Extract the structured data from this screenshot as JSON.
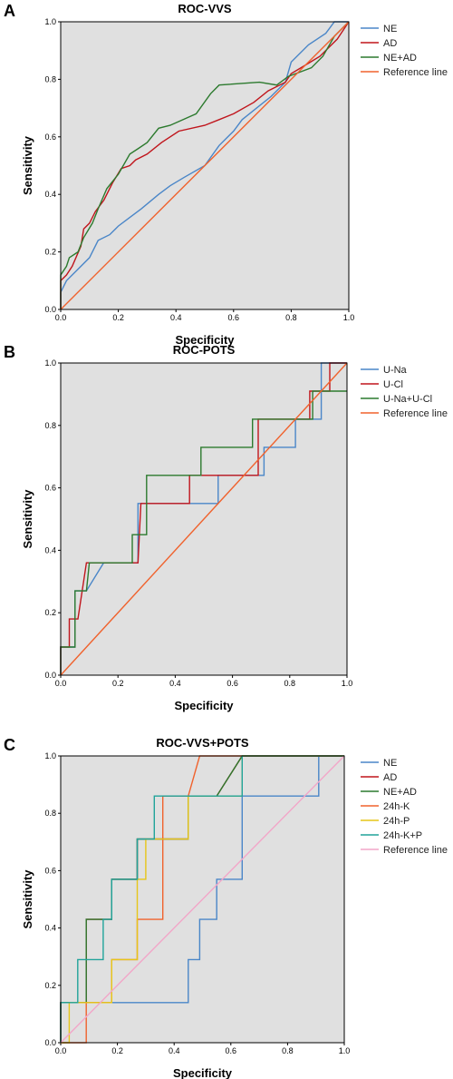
{
  "chart_data": [
    {
      "type": "line",
      "panel": "A",
      "title": "ROC-VVS",
      "xlabel": "Specificity",
      "ylabel": "Sensitivity",
      "xlim": [
        0,
        1
      ],
      "ylim": [
        0,
        1
      ],
      "ticks": [
        "0.0",
        "0.2",
        "0.4",
        "0.6",
        "0.8",
        "1.0"
      ],
      "legend_position": "right",
      "series": [
        {
          "name": "NE",
          "color": "#4a86c8",
          "points": [
            [
              0,
              0
            ],
            [
              0,
              0.06
            ],
            [
              0.02,
              0.1
            ],
            [
              0.06,
              0.14
            ],
            [
              0.1,
              0.18
            ],
            [
              0.13,
              0.24
            ],
            [
              0.17,
              0.26
            ],
            [
              0.2,
              0.29
            ],
            [
              0.24,
              0.32
            ],
            [
              0.28,
              0.35
            ],
            [
              0.34,
              0.4
            ],
            [
              0.38,
              0.43
            ],
            [
              0.43,
              0.46
            ],
            [
              0.5,
              0.5
            ],
            [
              0.55,
              0.57
            ],
            [
              0.6,
              0.62
            ],
            [
              0.63,
              0.66
            ],
            [
              0.68,
              0.7
            ],
            [
              0.73,
              0.74
            ],
            [
              0.78,
              0.79
            ],
            [
              0.8,
              0.86
            ],
            [
              0.86,
              0.92
            ],
            [
              0.92,
              0.96
            ],
            [
              0.95,
              1
            ],
            [
              1,
              1
            ]
          ]
        },
        {
          "name": "AD",
          "color": "#c0151c",
          "points": [
            [
              0,
              0
            ],
            [
              0,
              0.1
            ],
            [
              0.02,
              0.12
            ],
            [
              0.04,
              0.15
            ],
            [
              0.07,
              0.22
            ],
            [
              0.08,
              0.28
            ],
            [
              0.1,
              0.3
            ],
            [
              0.12,
              0.34
            ],
            [
              0.15,
              0.38
            ],
            [
              0.18,
              0.44
            ],
            [
              0.21,
              0.49
            ],
            [
              0.24,
              0.5
            ],
            [
              0.26,
              0.52
            ],
            [
              0.3,
              0.54
            ],
            [
              0.35,
              0.58
            ],
            [
              0.41,
              0.62
            ],
            [
              0.5,
              0.64
            ],
            [
              0.55,
              0.66
            ],
            [
              0.6,
              0.68
            ],
            [
              0.67,
              0.72
            ],
            [
              0.72,
              0.76
            ],
            [
              0.78,
              0.79
            ],
            [
              0.8,
              0.82
            ],
            [
              0.85,
              0.85
            ],
            [
              0.9,
              0.88
            ],
            [
              0.96,
              0.94
            ],
            [
              1,
              1
            ]
          ]
        },
        {
          "name": "NE+AD",
          "color": "#2c7a2e",
          "points": [
            [
              0,
              0
            ],
            [
              0,
              0.12
            ],
            [
              0.02,
              0.15
            ],
            [
              0.03,
              0.18
            ],
            [
              0.06,
              0.2
            ],
            [
              0.08,
              0.25
            ],
            [
              0.11,
              0.3
            ],
            [
              0.13,
              0.35
            ],
            [
              0.16,
              0.42
            ],
            [
              0.2,
              0.47
            ],
            [
              0.24,
              0.54
            ],
            [
              0.27,
              0.56
            ],
            [
              0.3,
              0.58
            ],
            [
              0.34,
              0.63
            ],
            [
              0.38,
              0.64
            ],
            [
              0.47,
              0.68
            ],
            [
              0.52,
              0.75
            ],
            [
              0.55,
              0.78
            ],
            [
              0.69,
              0.79
            ],
            [
              0.75,
              0.78
            ],
            [
              0.79,
              0.81
            ],
            [
              0.87,
              0.84
            ],
            [
              0.91,
              0.88
            ],
            [
              0.95,
              0.95
            ],
            [
              1,
              1
            ]
          ]
        },
        {
          "name": "Reference line",
          "color": "#f0622d",
          "points": [
            [
              0,
              0
            ],
            [
              1,
              1
            ]
          ]
        }
      ]
    },
    {
      "type": "line",
      "panel": "B",
      "title": "ROC-POTS",
      "xlabel": "Specificity",
      "ylabel": "Sensitivity",
      "xlim": [
        0,
        1
      ],
      "ylim": [
        0,
        1
      ],
      "ticks": [
        "0.0",
        "0.2",
        "0.4",
        "0.6",
        "0.8",
        "1.0"
      ],
      "legend_position": "right",
      "series": [
        {
          "name": "U-Na",
          "color": "#4a86c8",
          "points": [
            [
              0,
              0
            ],
            [
              0,
              0.09
            ],
            [
              0.05,
              0.09
            ],
            [
              0.05,
              0.27
            ],
            [
              0.09,
              0.27
            ],
            [
              0.15,
              0.36
            ],
            [
              0.27,
              0.36
            ],
            [
              0.27,
              0.55
            ],
            [
              0.55,
              0.55
            ],
            [
              0.55,
              0.64
            ],
            [
              0.71,
              0.64
            ],
            [
              0.71,
              0.73
            ],
            [
              0.82,
              0.73
            ],
            [
              0.82,
              0.82
            ],
            [
              0.91,
              0.82
            ],
            [
              0.91,
              1
            ],
            [
              1,
              1
            ]
          ]
        },
        {
          "name": "U-Cl",
          "color": "#c0151c",
          "points": [
            [
              0,
              0
            ],
            [
              0,
              0.09
            ],
            [
              0.03,
              0.09
            ],
            [
              0.03,
              0.18
            ],
            [
              0.06,
              0.18
            ],
            [
              0.09,
              0.36
            ],
            [
              0.27,
              0.36
            ],
            [
              0.28,
              0.55
            ],
            [
              0.45,
              0.55
            ],
            [
              0.45,
              0.64
            ],
            [
              0.69,
              0.64
            ],
            [
              0.69,
              0.82
            ],
            [
              0.87,
              0.82
            ],
            [
              0.87,
              0.91
            ],
            [
              0.94,
              0.91
            ],
            [
              0.94,
              1
            ],
            [
              1,
              1
            ]
          ]
        },
        {
          "name": "U-Na+U-Cl",
          "color": "#2c7a2e",
          "points": [
            [
              0,
              0
            ],
            [
              0,
              0.09
            ],
            [
              0.05,
              0.09
            ],
            [
              0.05,
              0.27
            ],
            [
              0.09,
              0.27
            ],
            [
              0.1,
              0.36
            ],
            [
              0.25,
              0.36
            ],
            [
              0.25,
              0.45
            ],
            [
              0.3,
              0.45
            ],
            [
              0.3,
              0.64
            ],
            [
              0.49,
              0.64
            ],
            [
              0.49,
              0.73
            ],
            [
              0.67,
              0.73
            ],
            [
              0.67,
              0.82
            ],
            [
              0.88,
              0.82
            ],
            [
              0.88,
              0.91
            ],
            [
              0.97,
              0.91
            ],
            [
              1,
              0.91
            ]
          ]
        },
        {
          "name": "Reference line",
          "color": "#f0622d",
          "points": [
            [
              0,
              0
            ],
            [
              1,
              1
            ]
          ]
        }
      ]
    },
    {
      "type": "line",
      "panel": "C",
      "title": "ROC-VVS+POTS",
      "xlabel": "Specificity",
      "ylabel": "Sensitivity",
      "xlim": [
        0,
        1
      ],
      "ylim": [
        0,
        1
      ],
      "ticks": [
        "0.0",
        "0.2",
        "0.4",
        "0.6",
        "0.8",
        "1.0"
      ],
      "legend_position": "right",
      "series": [
        {
          "name": "NE",
          "color": "#4a86c8",
          "points": [
            [
              0,
              0
            ],
            [
              0,
              0.14
            ],
            [
              0.45,
              0.14
            ],
            [
              0.45,
              0.29
            ],
            [
              0.49,
              0.29
            ],
            [
              0.49,
              0.43
            ],
            [
              0.55,
              0.43
            ],
            [
              0.55,
              0.57
            ],
            [
              0.64,
              0.57
            ],
            [
              0.64,
              0.86
            ],
            [
              0.91,
              0.86
            ],
            [
              0.91,
              1
            ],
            [
              1,
              1
            ]
          ]
        },
        {
          "name": "AD",
          "color": "#c0151c",
          "points": [
            [
              0,
              0
            ],
            [
              0,
              0.14
            ],
            [
              0.09,
              0.14
            ],
            [
              0.09,
              0.43
            ],
            [
              0.18,
              0.43
            ],
            [
              0.18,
              0.57
            ],
            [
              0.27,
              0.57
            ],
            [
              0.27,
              0.71
            ],
            [
              0.45,
              0.71
            ],
            [
              0.45,
              0.86
            ],
            [
              0.55,
              0.86
            ],
            [
              0.64,
              1
            ],
            [
              1,
              1
            ]
          ]
        },
        {
          "name": "NE+AD",
          "color": "#2c7a2e",
          "points": [
            [
              0,
              0
            ],
            [
              0,
              0.14
            ],
            [
              0.09,
              0.14
            ],
            [
              0.09,
              0.43
            ],
            [
              0.18,
              0.43
            ],
            [
              0.18,
              0.57
            ],
            [
              0.27,
              0.57
            ],
            [
              0.27,
              0.71
            ],
            [
              0.45,
              0.71
            ],
            [
              0.45,
              0.86
            ],
            [
              0.55,
              0.86
            ],
            [
              0.64,
              1
            ],
            [
              1,
              1
            ]
          ]
        },
        {
          "name": "24h-K",
          "color": "#f0622d",
          "points": [
            [
              0,
              0
            ],
            [
              0.09,
              0
            ],
            [
              0.09,
              0.14
            ],
            [
              0.18,
              0.14
            ],
            [
              0.18,
              0.29
            ],
            [
              0.27,
              0.29
            ],
            [
              0.27,
              0.43
            ],
            [
              0.36,
              0.43
            ],
            [
              0.36,
              0.57
            ],
            [
              0.36,
              0.86
            ],
            [
              0.45,
              0.86
            ],
            [
              0.49,
              1
            ],
            [
              1,
              1
            ]
          ]
        },
        {
          "name": "24h-P",
          "color": "#e6c619",
          "points": [
            [
              0,
              0
            ],
            [
              0.03,
              0
            ],
            [
              0.03,
              0.14
            ],
            [
              0.18,
              0.14
            ],
            [
              0.18,
              0.29
            ],
            [
              0.27,
              0.29
            ],
            [
              0.27,
              0.57
            ],
            [
              0.3,
              0.57
            ],
            [
              0.3,
              0.71
            ],
            [
              0.45,
              0.71
            ],
            [
              0.45,
              0.86
            ],
            [
              0.64,
              0.86
            ],
            [
              0.64,
              1
            ],
            [
              1,
              1
            ]
          ]
        },
        {
          "name": "24h-K+P",
          "color": "#21a39a",
          "points": [
            [
              0,
              0
            ],
            [
              0,
              0.14
            ],
            [
              0.06,
              0.14
            ],
            [
              0.06,
              0.29
            ],
            [
              0.15,
              0.29
            ],
            [
              0.15,
              0.43
            ],
            [
              0.18,
              0.43
            ],
            [
              0.18,
              0.57
            ],
            [
              0.27,
              0.57
            ],
            [
              0.27,
              0.71
            ],
            [
              0.33,
              0.71
            ],
            [
              0.33,
              0.86
            ],
            [
              0.64,
              0.86
            ],
            [
              0.64,
              1
            ],
            [
              0.73,
              1
            ],
            [
              1,
              1
            ]
          ]
        },
        {
          "name": "Reference line",
          "color": "#f2a6c8",
          "points": [
            [
              0,
              0
            ],
            [
              1,
              1
            ]
          ]
        }
      ]
    }
  ]
}
